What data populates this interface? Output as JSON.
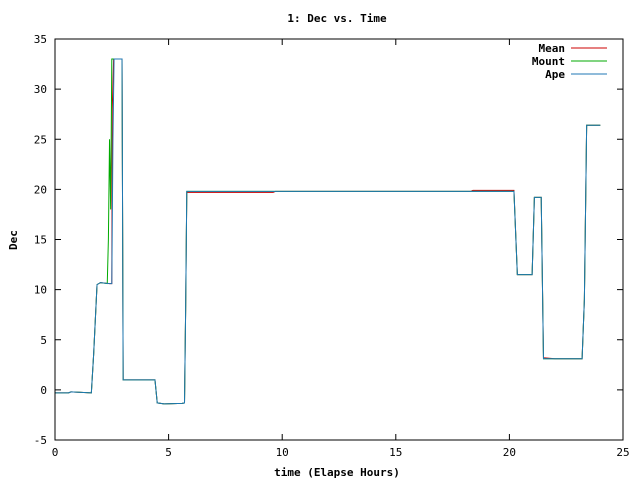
{
  "chart_data": {
    "type": "line",
    "title": "1: Dec vs. Time",
    "xlabel": "time (Elapse Hours)",
    "ylabel": "Dec",
    "xlim": [
      0,
      25
    ],
    "ylim": [
      -5,
      35
    ],
    "xticks": [
      0,
      5,
      10,
      15,
      20,
      25
    ],
    "yticks": [
      -5,
      0,
      5,
      10,
      15,
      20,
      25,
      30,
      35
    ],
    "grid": false,
    "legend_position": "top-right",
    "series": [
      {
        "name": "Mean",
        "color": "#cc0000",
        "points": [
          [
            0,
            -0.3
          ],
          [
            0.6,
            -0.3
          ],
          [
            0.7,
            -0.2
          ],
          [
            1.6,
            -0.3
          ],
          [
            1.7,
            3.5
          ],
          [
            1.85,
            10.5
          ],
          [
            2.0,
            10.7
          ],
          [
            2.4,
            10.6
          ],
          [
            2.5,
            10.6
          ],
          [
            2.52,
            28.0
          ],
          [
            2.58,
            33.0
          ],
          [
            2.95,
            33.0
          ],
          [
            3.0,
            1.0
          ],
          [
            3.2,
            1.0
          ],
          [
            4.4,
            1.0
          ],
          [
            4.5,
            -1.3
          ],
          [
            4.8,
            -1.4
          ],
          [
            5.6,
            -1.35
          ],
          [
            5.7,
            -1.3
          ],
          [
            5.75,
            8.0
          ],
          [
            5.8,
            19.7
          ],
          [
            9.6,
            19.7
          ],
          [
            9.7,
            19.8
          ],
          [
            18.3,
            19.8
          ],
          [
            18.4,
            19.9
          ],
          [
            20.2,
            19.9
          ],
          [
            20.35,
            11.5
          ],
          [
            20.5,
            11.5
          ],
          [
            21.0,
            11.5
          ],
          [
            21.1,
            19.2
          ],
          [
            21.4,
            19.2
          ],
          [
            21.5,
            3.2
          ],
          [
            22.0,
            3.1
          ],
          [
            23.2,
            3.1
          ],
          [
            23.3,
            9.0
          ],
          [
            23.4,
            26.4
          ],
          [
            24.0,
            26.4
          ]
        ]
      },
      {
        "name": "Mount",
        "color": "#00aa00",
        "points": [
          [
            0,
            -0.3
          ],
          [
            0.6,
            -0.3
          ],
          [
            0.7,
            -0.2
          ],
          [
            1.6,
            -0.3
          ],
          [
            1.7,
            3.5
          ],
          [
            1.85,
            10.5
          ],
          [
            2.0,
            10.7
          ],
          [
            2.3,
            10.6
          ],
          [
            2.35,
            15.0
          ],
          [
            2.4,
            25.0
          ],
          [
            2.45,
            18.0
          ],
          [
            2.5,
            33.0
          ],
          [
            2.95,
            33.0
          ],
          [
            3.0,
            1.0
          ],
          [
            3.2,
            1.0
          ],
          [
            4.4,
            1.0
          ],
          [
            4.5,
            -1.3
          ],
          [
            4.8,
            -1.4
          ],
          [
            5.6,
            -1.35
          ],
          [
            5.7,
            -1.3
          ],
          [
            5.75,
            8.0
          ],
          [
            5.8,
            19.8
          ],
          [
            18.3,
            19.8
          ],
          [
            20.2,
            19.8
          ],
          [
            20.35,
            11.5
          ],
          [
            20.5,
            11.5
          ],
          [
            21.0,
            11.5
          ],
          [
            21.1,
            19.2
          ],
          [
            21.4,
            19.2
          ],
          [
            21.5,
            3.1
          ],
          [
            22.0,
            3.1
          ],
          [
            23.2,
            3.1
          ],
          [
            23.3,
            9.0
          ],
          [
            23.4,
            26.4
          ],
          [
            24.0,
            26.4
          ]
        ]
      },
      {
        "name": "Ape",
        "color": "#1f77b4",
        "points": [
          [
            0,
            -0.3
          ],
          [
            0.6,
            -0.3
          ],
          [
            0.7,
            -0.2
          ],
          [
            1.6,
            -0.3
          ],
          [
            1.7,
            3.5
          ],
          [
            1.85,
            10.5
          ],
          [
            2.0,
            10.7
          ],
          [
            2.4,
            10.6
          ],
          [
            2.5,
            10.6
          ],
          [
            2.55,
            25.0
          ],
          [
            2.6,
            33.0
          ],
          [
            2.95,
            33.0
          ],
          [
            3.0,
            1.0
          ],
          [
            3.2,
            1.0
          ],
          [
            4.4,
            1.0
          ],
          [
            4.5,
            -1.3
          ],
          [
            4.8,
            -1.4
          ],
          [
            5.6,
            -1.35
          ],
          [
            5.7,
            -1.3
          ],
          [
            5.75,
            8.0
          ],
          [
            5.8,
            19.8
          ],
          [
            18.3,
            19.8
          ],
          [
            20.2,
            19.8
          ],
          [
            20.35,
            11.5
          ],
          [
            20.5,
            11.5
          ],
          [
            21.0,
            11.5
          ],
          [
            21.1,
            19.2
          ],
          [
            21.4,
            19.2
          ],
          [
            21.5,
            3.1
          ],
          [
            22.0,
            3.1
          ],
          [
            23.2,
            3.1
          ],
          [
            23.3,
            9.0
          ],
          [
            23.4,
            26.4
          ],
          [
            24.0,
            26.4
          ]
        ]
      }
    ]
  }
}
